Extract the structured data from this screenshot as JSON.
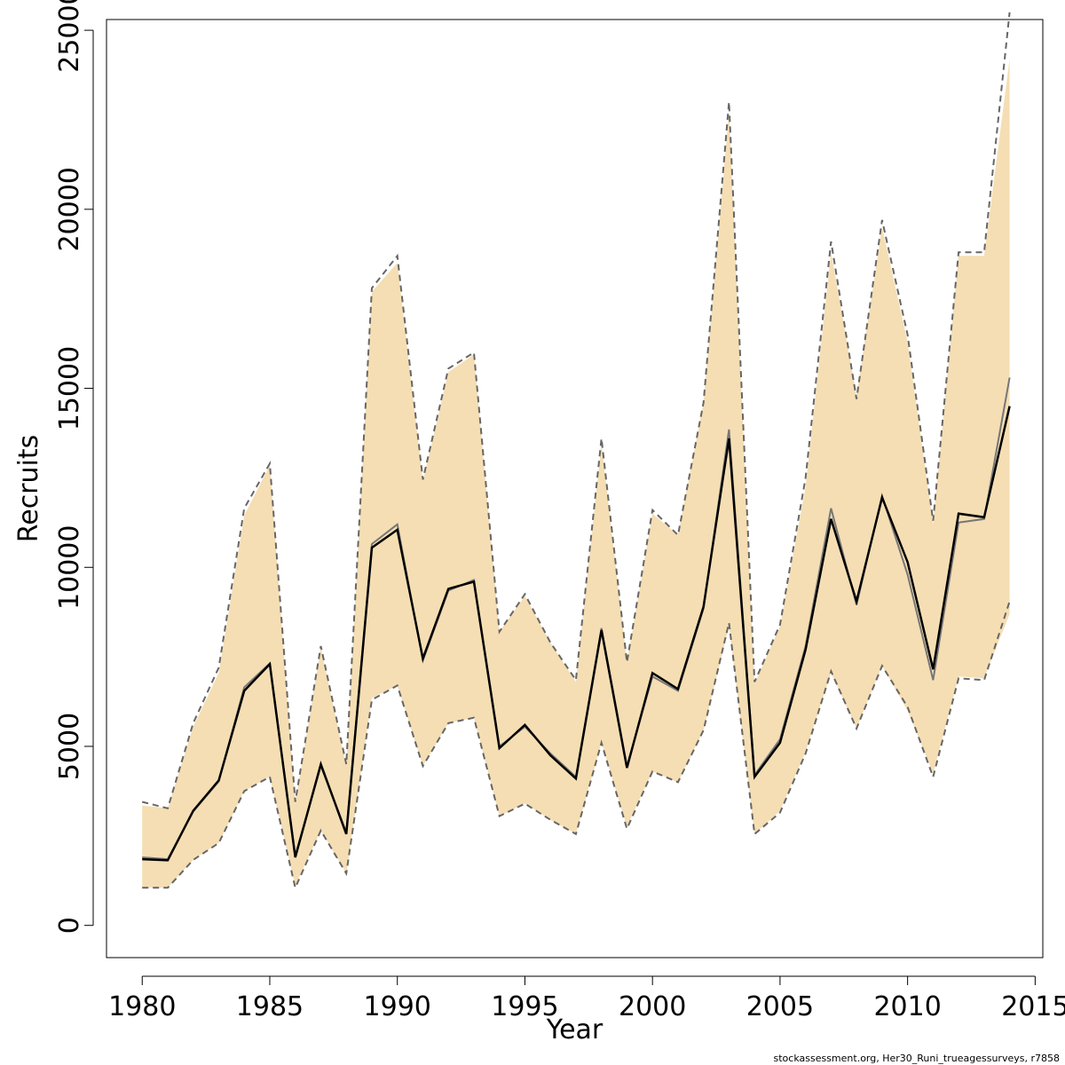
{
  "chart_data": {
    "type": "area",
    "xlabel": "Year",
    "ylabel": "Recruits",
    "xlim": [
      1978.6,
      2015.3
    ],
    "ylim": [
      -900,
      25300
    ],
    "x_ticks": [
      1980,
      1985,
      1990,
      1995,
      2000,
      2005,
      2010,
      2015
    ],
    "y_ticks": [
      0,
      5000,
      10000,
      15000,
      20000,
      25000
    ],
    "grid": false,
    "colors": {
      "band_fill": "#f5deb3",
      "main_line": "#000000",
      "alt_line": "#777777",
      "bounds": "#666666"
    },
    "x": [
      1980,
      1981,
      1982,
      1983,
      1984,
      1985,
      1986,
      1987,
      1988,
      1989,
      1990,
      1991,
      1992,
      1993,
      1994,
      1995,
      1996,
      1997,
      1998,
      1999,
      2000,
      2001,
      2002,
      2003,
      2004,
      2005,
      2006,
      2007,
      2008,
      2009,
      2010,
      2011,
      2012,
      2013,
      2014
    ],
    "series": [
      {
        "values": [
          1850,
          1820,
          3200,
          4050,
          6550,
          7300,
          1900,
          4500,
          2550,
          10550,
          11050,
          7450,
          9400,
          9600,
          4950,
          5600,
          4750,
          4100,
          8250,
          4400,
          7050,
          6600,
          8900,
          13600,
          4150,
          5100,
          7700,
          11350,
          9050,
          11950,
          10150,
          7150,
          11500,
          11400,
          14500
        ]
      },
      {
        "values": [
          1900,
          1850,
          3180,
          4020,
          6650,
          7320,
          1950,
          4450,
          2600,
          10650,
          11200,
          7400,
          9350,
          9650,
          5000,
          5550,
          4800,
          4150,
          8300,
          4450,
          6950,
          6550,
          8850,
          13850,
          4200,
          5200,
          7800,
          11650,
          8950,
          12000,
          9800,
          6850,
          11250,
          11350,
          15300
        ]
      }
    ],
    "band_upper": [
      3350,
      3270,
      5550,
      7050,
      11450,
      12850,
      3400,
      7750,
      4450,
      17700,
      18500,
      12400,
      15450,
      15950,
      8200,
      9200,
      7900,
      6800,
      13450,
      7350,
      11500,
      10900,
      14600,
      22700,
      6750,
      8350,
      12250,
      18800,
      14800,
      19500,
      16300,
      11200,
      18700,
      18700,
      24200
    ],
    "band_lower": [
      1050,
      1050,
      1830,
      2300,
      3750,
      4150,
      1100,
      2650,
      1450,
      6350,
      6700,
      4450,
      5650,
      5800,
      3050,
      3400,
      2950,
      2550,
      5100,
      2750,
      4300,
      3990,
      5450,
      8350,
      2550,
      3200,
      4850,
      7050,
      5500,
      7250,
      6000,
      4250,
      6950,
      6900,
      8700
    ],
    "dashed_upper": [
      3450,
      3270,
      5650,
      7200,
      11650,
      12900,
      3450,
      7800,
      4500,
      17800,
      18700,
      12450,
      15550,
      16000,
      8200,
      9250,
      7900,
      6850,
      13600,
      7350,
      11600,
      10900,
      14600,
      23000,
      6800,
      8400,
      12500,
      19100,
      14700,
      19700,
      16500,
      11300,
      18800,
      18800,
      25500
    ],
    "dashed_lower": [
      1050,
      1050,
      1830,
      2300,
      3750,
      4150,
      1050,
      2650,
      1450,
      6300,
      6700,
      4450,
      5650,
      5800,
      3050,
      3400,
      2950,
      2550,
      5100,
      2700,
      4300,
      4000,
      5450,
      8450,
      2550,
      3150,
      4800,
      7100,
      5500,
      7250,
      6100,
      4150,
      6900,
      6850,
      9050
    ],
    "credit": "stockassessment.org, Her30_Runi_trueagessurveys, r7858"
  }
}
